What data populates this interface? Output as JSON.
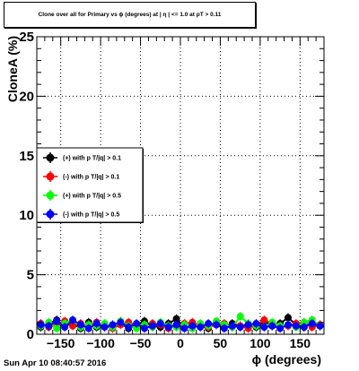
{
  "title": "Clone  over all for Primary vs ϕ (degrees) at | η | <= 1.0 at pT > 0.11",
  "timestamp": "Sun Apr 10 08:40:57 2016",
  "chart_data": {
    "type": "scatter",
    "xlabel": "ϕ (degrees)",
    "ylabel": "CloneA (%)",
    "xlim": [
      -180,
      180
    ],
    "ylim": [
      0,
      25
    ],
    "x_ticks": [
      -150,
      -100,
      -50,
      0,
      50,
      100,
      150
    ],
    "y_ticks": [
      0,
      5,
      10,
      15,
      20,
      25
    ],
    "grid": true,
    "legend_position": "left-middle",
    "series": [
      {
        "name": "(+) with p T/|q| > 0.1",
        "color": "#000000",
        "x": [
          -175,
          -165,
          -155,
          -145,
          -135,
          -125,
          -115,
          -105,
          -95,
          -85,
          -75,
          -65,
          -55,
          -45,
          -35,
          -25,
          -15,
          -5,
          5,
          15,
          25,
          35,
          45,
          55,
          65,
          75,
          85,
          95,
          105,
          115,
          125,
          135,
          145,
          155,
          165,
          175
        ],
        "y": [
          0.6,
          0.9,
          1.2,
          0.7,
          0.9,
          0.5,
          1.0,
          0.6,
          0.8,
          0.7,
          0.9,
          0.5,
          0.8,
          1.1,
          0.7,
          0.6,
          0.9,
          1.3,
          0.6,
          0.8,
          0.7,
          0.5,
          1.0,
          0.6,
          0.9,
          0.7,
          0.8,
          0.6,
          1.1,
          0.7,
          0.9,
          1.4,
          0.8,
          0.6,
          1.0,
          0.7
        ]
      },
      {
        "name": "(-) with p T/|q| > 0.1",
        "color": "#ff0000",
        "x": [
          -175,
          -165,
          -155,
          -145,
          -135,
          -125,
          -115,
          -105,
          -95,
          -85,
          -75,
          -65,
          -55,
          -45,
          -35,
          -25,
          -15,
          -5,
          5,
          15,
          25,
          35,
          45,
          55,
          65,
          75,
          85,
          95,
          105,
          115,
          125,
          135,
          145,
          155,
          165,
          175
        ],
        "y": [
          0.9,
          0.6,
          0.8,
          1.1,
          0.7,
          0.9,
          0.6,
          1.0,
          0.7,
          0.5,
          0.8,
          1.0,
          0.7,
          0.6,
          0.9,
          0.8,
          0.5,
          0.7,
          0.9,
          1.0,
          0.7,
          0.6,
          0.8,
          0.9,
          0.6,
          0.7,
          0.5,
          0.8,
          1.2,
          0.9,
          0.6,
          0.7,
          0.9,
          1.0,
          0.6,
          0.8
        ]
      },
      {
        "name": "(+) with p T/|q| > 0.5",
        "color": "#00ff00",
        "x": [
          -175,
          -165,
          -155,
          -145,
          -135,
          -125,
          -115,
          -105,
          -95,
          -85,
          -75,
          -65,
          -55,
          -45,
          -35,
          -25,
          -15,
          -5,
          5,
          15,
          25,
          35,
          45,
          55,
          65,
          75,
          85,
          95,
          105,
          115,
          125,
          135,
          145,
          155,
          165,
          175
        ],
        "y": [
          0.7,
          1.0,
          0.5,
          0.9,
          1.2,
          0.6,
          0.8,
          0.7,
          0.9,
          0.6,
          1.1,
          0.7,
          0.5,
          0.8,
          0.6,
          1.0,
          0.7,
          0.6,
          0.8,
          0.5,
          0.9,
          0.7,
          1.1,
          0.8,
          0.6,
          1.5,
          0.9,
          0.7,
          0.6,
          1.0,
          0.7,
          0.8,
          0.6,
          1.0,
          1.2,
          0.7
        ]
      },
      {
        "name": "(-) with p T/|q| > 0.5",
        "color": "#0000ff",
        "x": [
          -175,
          -165,
          -155,
          -145,
          -135,
          -125,
          -115,
          -105,
          -95,
          -85,
          -75,
          -65,
          -55,
          -45,
          -35,
          -25,
          -15,
          -5,
          5,
          15,
          25,
          35,
          45,
          55,
          65,
          75,
          85,
          95,
          105,
          115,
          125,
          135,
          145,
          155,
          165,
          175
        ],
        "y": [
          0.8,
          0.7,
          1.1,
          0.6,
          1.2,
          0.8,
          0.5,
          0.9,
          0.6,
          0.8,
          1.0,
          0.6,
          0.9,
          0.5,
          0.7,
          0.9,
          0.6,
          0.8,
          0.5,
          0.7,
          0.6,
          0.9,
          0.8,
          0.5,
          0.7,
          0.6,
          0.8,
          0.9,
          0.6,
          0.7,
          0.5,
          0.8,
          0.7,
          0.6,
          0.9,
          0.7
        ]
      }
    ]
  }
}
